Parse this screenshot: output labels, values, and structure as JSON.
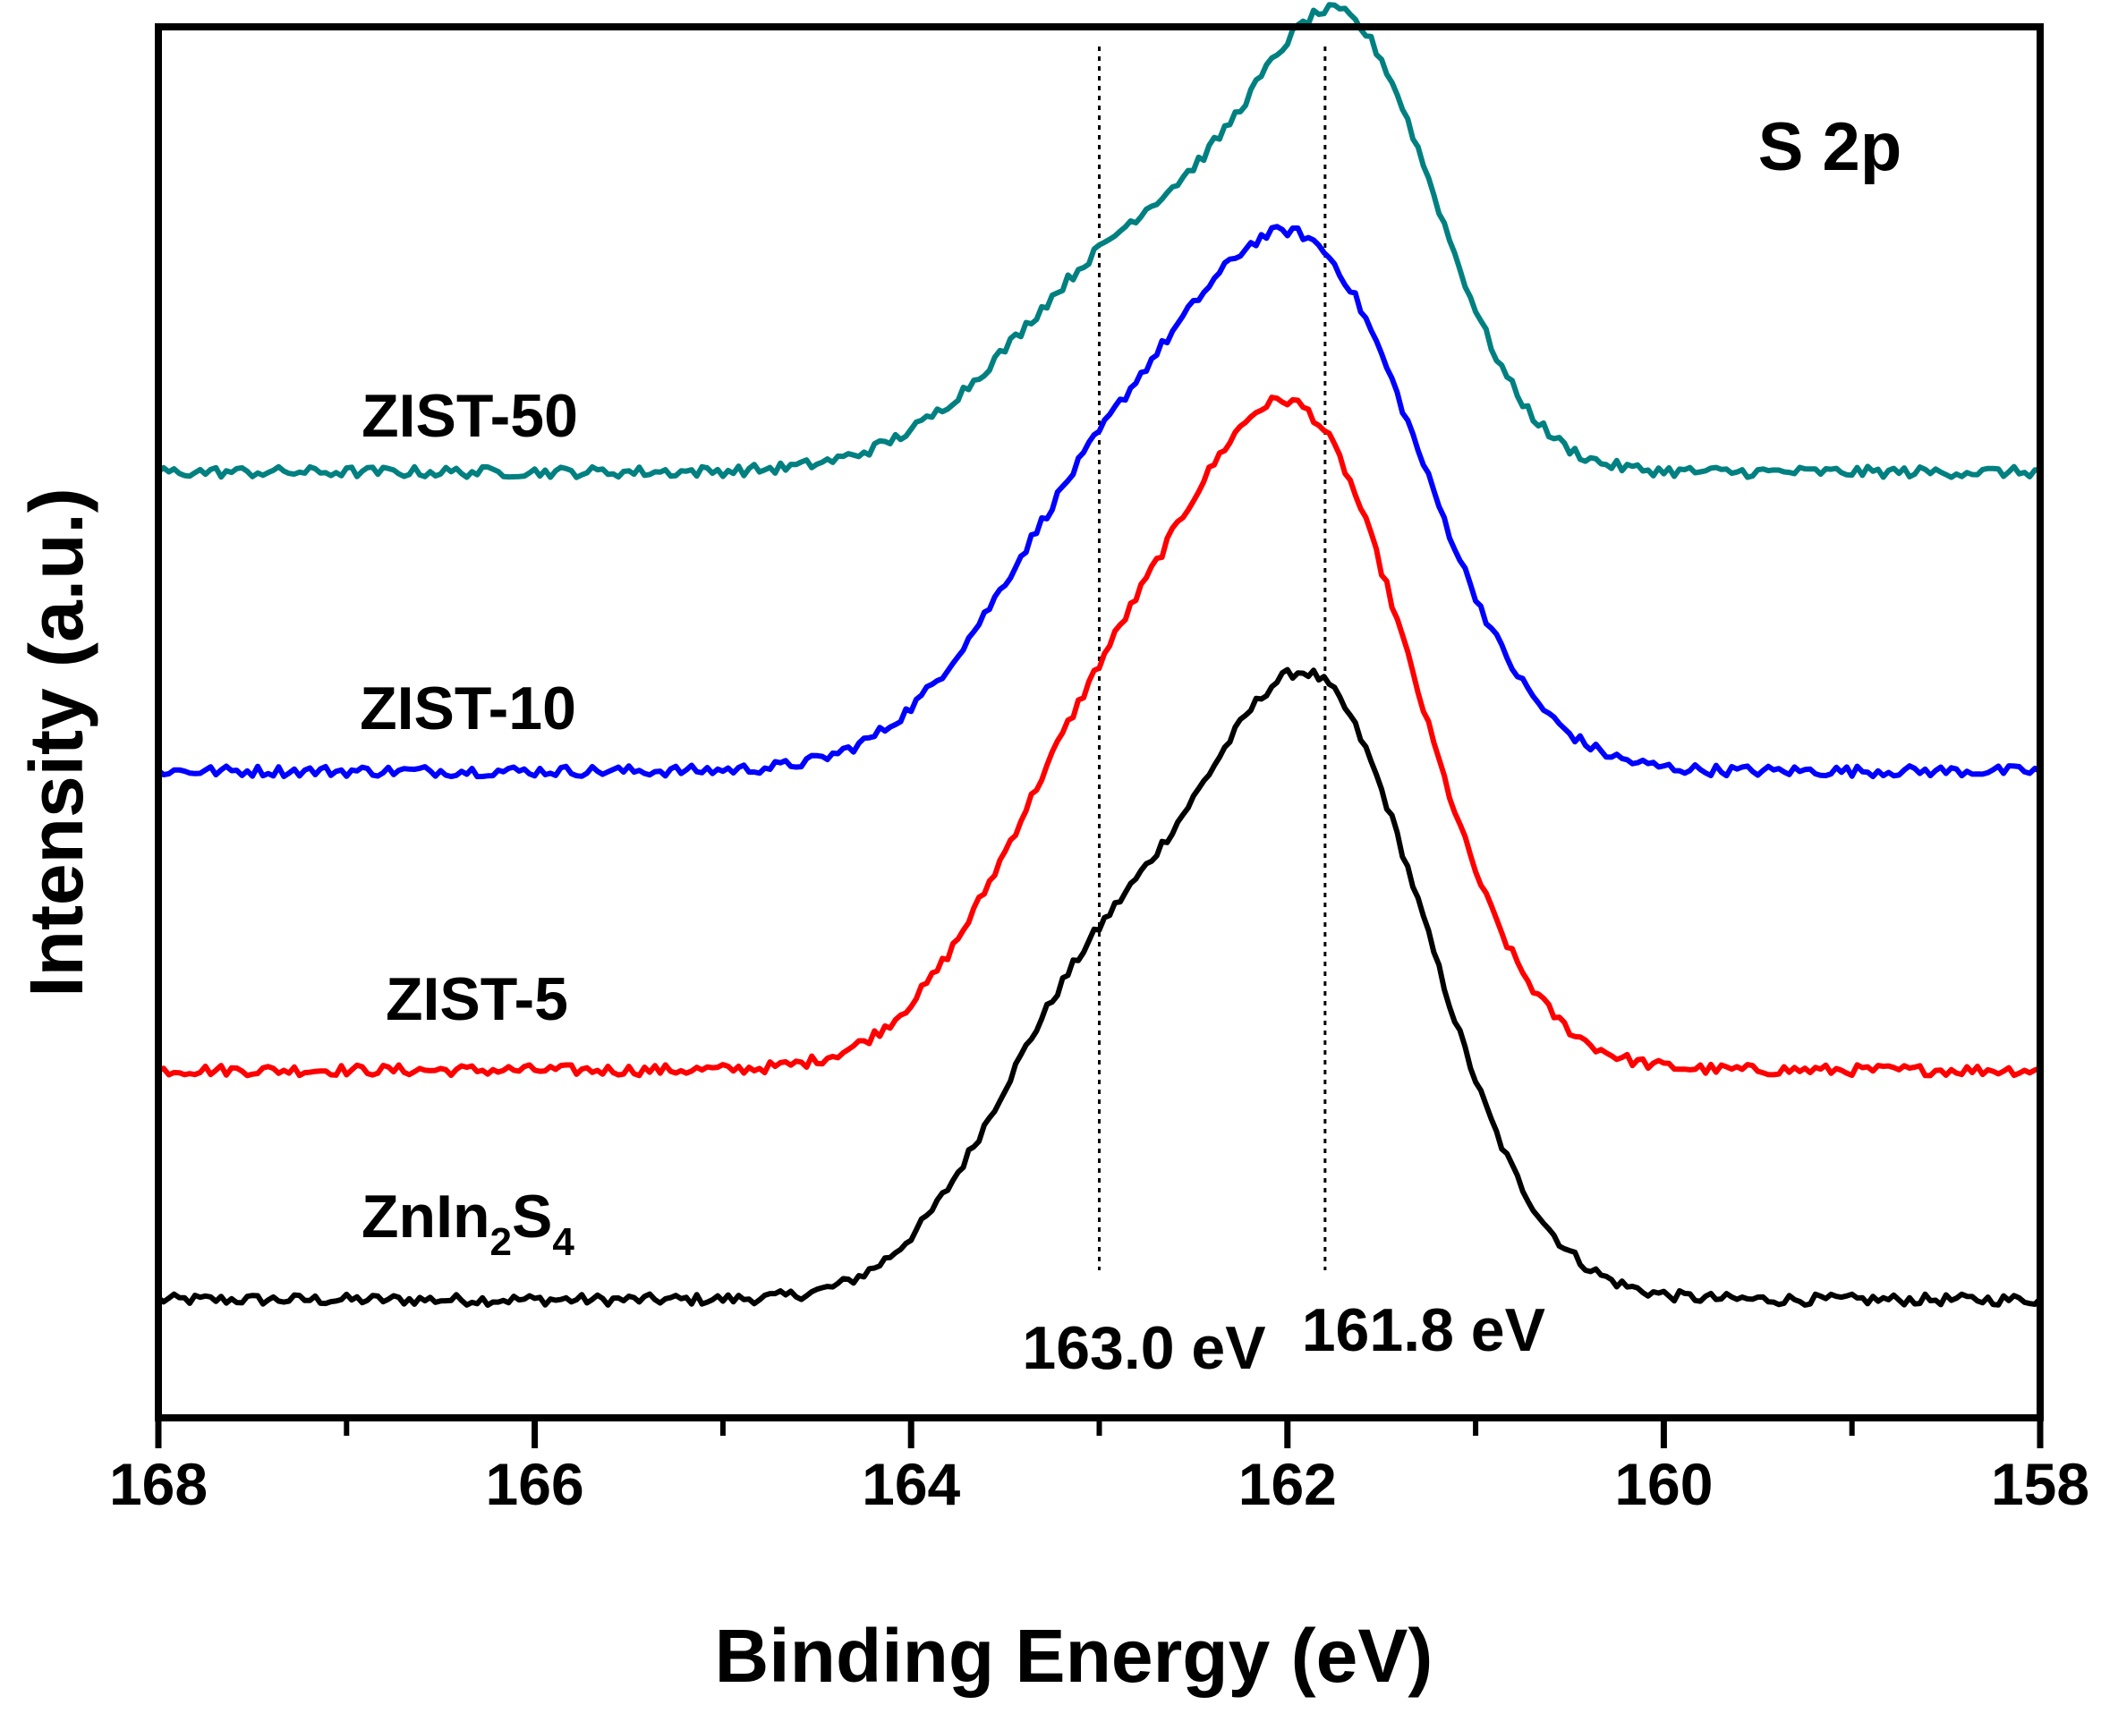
{
  "chart_data": {
    "type": "line",
    "title": "",
    "panel_label": "S 2p",
    "xlabel": "Binding Energy (eV)",
    "ylabel": "Intensity (a.u.)",
    "xlim": [
      168,
      158
    ],
    "x_reversed": true,
    "ylim": [
      0,
      1
    ],
    "y_ticks_shown": false,
    "x_ticks_major": [
      168,
      166,
      164,
      162,
      160,
      158
    ],
    "x_tick_labels": [
      "168",
      "166",
      "164",
      "162",
      "160",
      "158"
    ],
    "x_ticks_minor": [
      167,
      165,
      163,
      161,
      159
    ],
    "reference_lines": [
      {
        "x": 163.0,
        "label": "163.0 eV",
        "style": "dotted"
      },
      {
        "x": 161.8,
        "label": "161.8 eV",
        "style": "dotted"
      }
    ],
    "series": [
      {
        "name": "ZnIn2S4",
        "label_main": "ZnIn",
        "label_sub1": "2",
        "label_mid": "S",
        "label_sub2": "4",
        "color": "#000000",
        "baseline": 0.085,
        "peaks": [
          {
            "center": 161.85,
            "amp": 0.43,
            "width": 0.6
          },
          {
            "center": 163.05,
            "amp": 0.2,
            "width": 0.55
          }
        ]
      },
      {
        "name": "ZIST-5",
        "label": "ZIST-5",
        "color": "#ff0000",
        "baseline": 0.25,
        "peaks": [
          {
            "center": 161.9,
            "amp": 0.44,
            "width": 0.6
          },
          {
            "center": 163.0,
            "amp": 0.21,
            "width": 0.58
          }
        ]
      },
      {
        "name": "ZIST-10",
        "label": "ZIST-10",
        "color": "#0000ff",
        "baseline": 0.465,
        "peaks": [
          {
            "center": 161.85,
            "amp": 0.34,
            "width": 0.6
          },
          {
            "center": 162.95,
            "amp": 0.19,
            "width": 0.62
          }
        ]
      },
      {
        "name": "ZIST-50",
        "label": "ZIST-50",
        "color": "#008080",
        "baseline": 0.68,
        "peaks": [
          {
            "center": 161.65,
            "amp": 0.27,
            "width": 0.48
          },
          {
            "center": 162.7,
            "amp": 0.17,
            "width": 0.7
          }
        ]
      }
    ]
  }
}
